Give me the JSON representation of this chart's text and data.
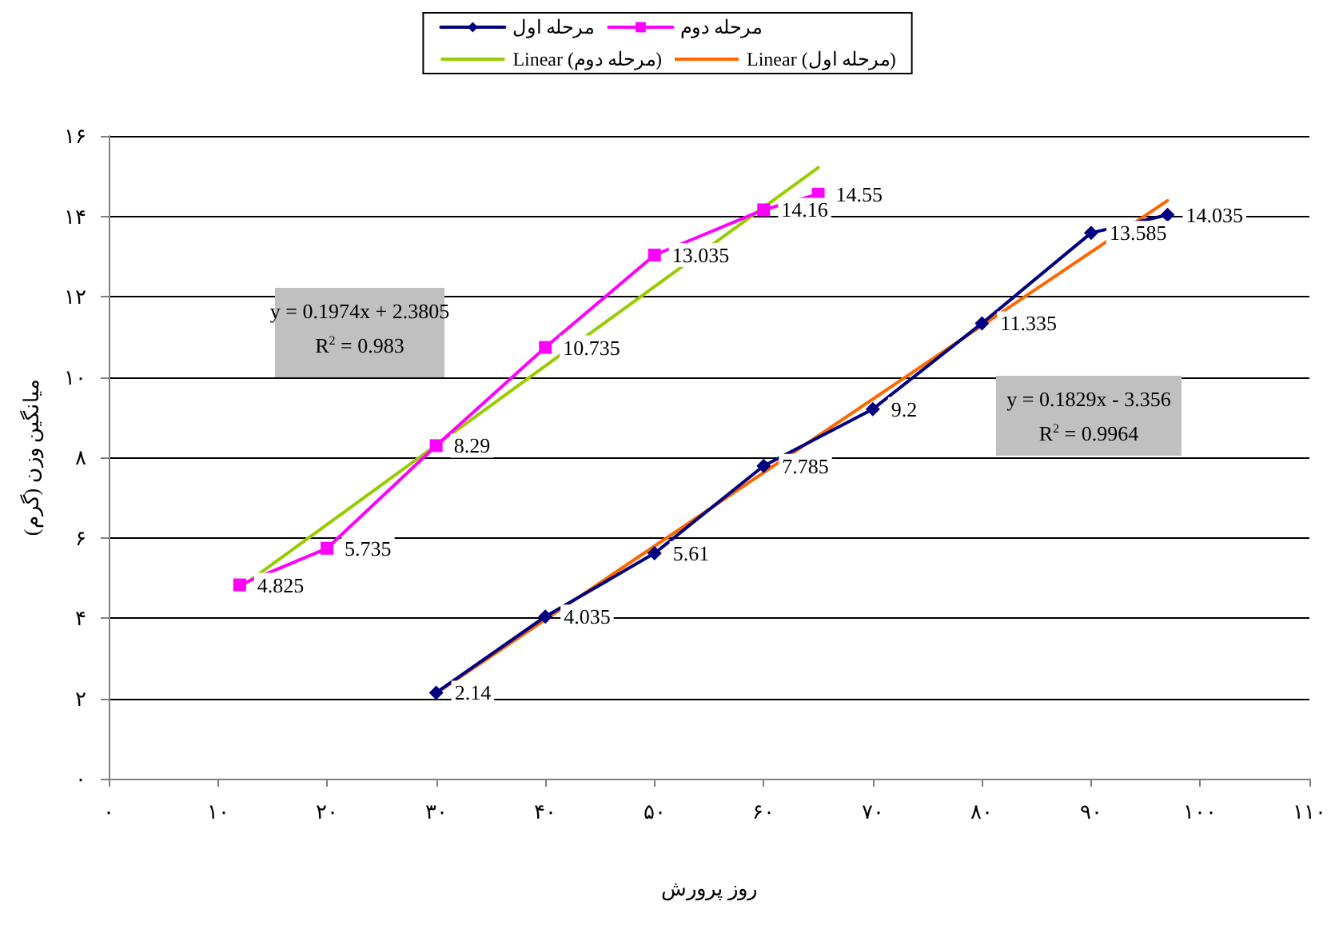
{
  "chart_data": {
    "type": "line",
    "xlabel": "روز پرورش",
    "ylabel": "میانگین وزن (گرم)",
    "xlim": [
      0,
      110
    ],
    "xticks": [
      {
        "value": 0,
        "label": "۰"
      },
      {
        "value": 10,
        "label": "۱۰"
      },
      {
        "value": 20,
        "label": "۲۰"
      },
      {
        "value": 30,
        "label": "۳۰"
      },
      {
        "value": 40,
        "label": "۴۰"
      },
      {
        "value": 50,
        "label": "۵۰"
      },
      {
        "value": 60,
        "label": "۶۰"
      },
      {
        "value": 70,
        "label": "۷۰"
      },
      {
        "value": 80,
        "label": "۸۰"
      },
      {
        "value": 90,
        "label": "۹۰"
      },
      {
        "value": 100,
        "label": "۱۰۰"
      },
      {
        "value": 110,
        "label": "۱۱۰"
      }
    ],
    "ylim": [
      0,
      16
    ],
    "yticks": [
      {
        "value": 0,
        "label": "۰"
      },
      {
        "value": 2,
        "label": "۲"
      },
      {
        "value": 4,
        "label": "۴"
      },
      {
        "value": 6,
        "label": "۶"
      },
      {
        "value": 8,
        "label": "۸"
      },
      {
        "value": 10,
        "label": "۱۰"
      },
      {
        "value": 12,
        "label": "۱۲"
      },
      {
        "value": 14,
        "label": "۱۴"
      },
      {
        "value": 16,
        "label": "۱۶"
      }
    ],
    "grid": "y",
    "legend": "top",
    "series": [
      {
        "name": "مرحله اول",
        "color": "#000080",
        "marker": "diamond",
        "x": [
          30,
          40,
          50,
          60,
          70,
          80,
          90,
          97
        ],
        "values": [
          2.14,
          4.035,
          5.61,
          7.785,
          9.2,
          11.335,
          13.585,
          14.035
        ],
        "value_labels": [
          "2.14",
          "4.035",
          "5.61",
          "7.785",
          "9.2",
          "11.335",
          "13.585",
          "14.035"
        ]
      },
      {
        "name": "مرحله دوم",
        "color": "#ff00ff",
        "marker": "square",
        "x": [
          12,
          20,
          30,
          40,
          50,
          60,
          65
        ],
        "values": [
          4.825,
          5.735,
          8.29,
          10.735,
          13.035,
          14.16,
          14.55
        ],
        "value_labels": [
          "4.825",
          "5.735",
          "8.29",
          "10.735",
          "13.035",
          "14.16",
          "14.55"
        ]
      },
      {
        "name": "Linear (مرحله دوم)",
        "color": "#99cc00",
        "marker": "none",
        "x": [
          12,
          65
        ],
        "values": [
          4.75,
          15.21
        ]
      },
      {
        "name": "Linear (مرحله اول)",
        "color": "#ff6600",
        "marker": "none",
        "x": [
          30,
          97
        ],
        "values": [
          2.13,
          14.39
        ]
      }
    ],
    "annotations": [
      "y = 0.1974x + 2.3805",
      "R$^{2}$ = 0.983",
      "y = 0.1829x - 3.356",
      "R$^{2}$ = 0.9964"
    ]
  }
}
